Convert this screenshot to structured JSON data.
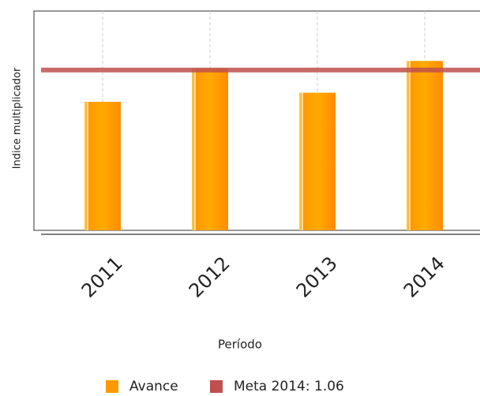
{
  "chart_data": {
    "type": "bar",
    "y_label": "Indice multiplicador",
    "x_label": "Período",
    "categories": [
      "2011",
      "2012",
      "2013",
      "2014"
    ],
    "series": [
      {
        "name": "Avance",
        "color": "#ff9900",
        "values": [
          0.85,
          1.07,
          0.91,
          1.12
        ]
      }
    ],
    "threshold": {
      "name": "Meta 2014: 1.06",
      "value": 1.06,
      "color": "#c0504d"
    },
    "ylim": [
      0,
      1.45
    ],
    "grid": true
  }
}
